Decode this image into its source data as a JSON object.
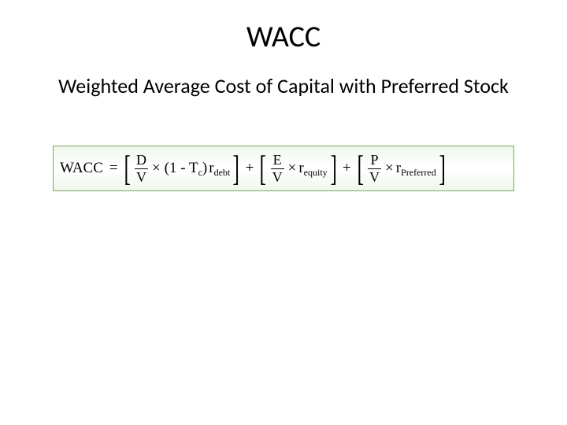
{
  "title": "WACC",
  "subtitle": "Weighted Average Cost of Capital with Preferred Stock",
  "formula": {
    "label": "WACC",
    "eq": "=",
    "plus": "+",
    "times": "×",
    "lbracket": "[",
    "rbracket": "]",
    "lparen": "(1 - T",
    "tax_sub": "c",
    "rparen": ")",
    "term1": {
      "num": "D",
      "den": "V",
      "r": "r",
      "rsub": "debt"
    },
    "term2": {
      "num": "E",
      "den": "V",
      "r": "r",
      "rsub": "equity"
    },
    "term3": {
      "num": "P",
      "den": "V",
      "r": "r",
      "rsub": "Preferred"
    }
  },
  "style": {
    "box_border": "#7aa860",
    "box_bg_top": "#eff6eb",
    "title_fontsize": 38,
    "subtitle_fontsize": 26,
    "formula_fontsize": 19
  }
}
